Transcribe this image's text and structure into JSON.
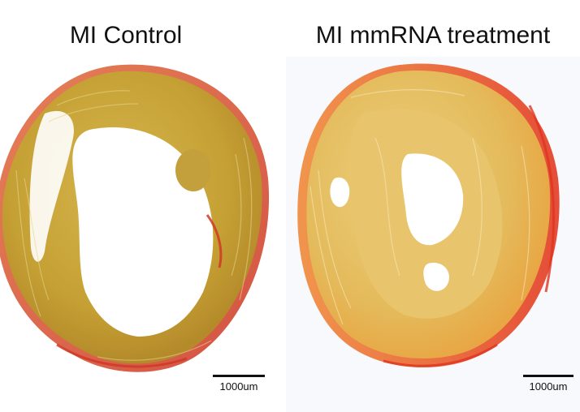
{
  "panels": [
    {
      "title": "MI Control",
      "scale_label": "1000um",
      "colors": {
        "tissue": "#c9a43a",
        "fibrosis": "#d8452a",
        "background": "#ffffff"
      }
    },
    {
      "title": "MI mmRNA treatment",
      "scale_label": "1000um",
      "colors": {
        "tissue": "#e6c266",
        "fibrosis": "#e8552a",
        "background": "#f6f8fb"
      }
    }
  ]
}
